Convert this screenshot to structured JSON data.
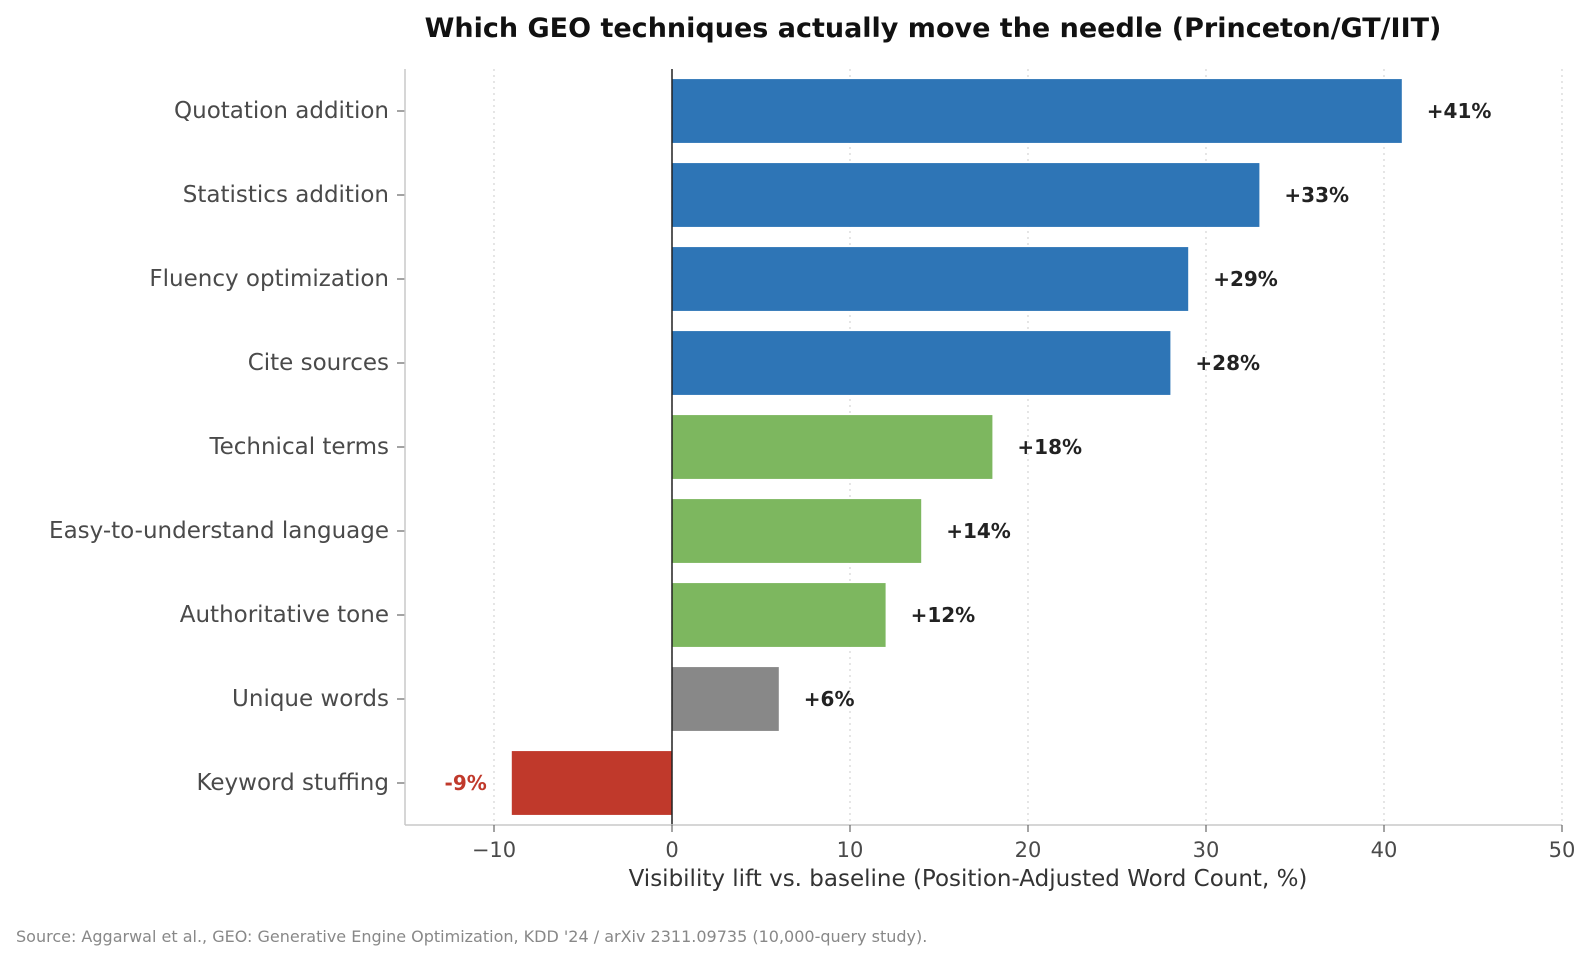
{
  "chart_data": {
    "type": "bar",
    "orientation": "horizontal",
    "title": "Which GEO techniques actually move the needle (Princeton/GT/IIT)",
    "xlabel": "Visibility lift vs. baseline (Position-Adjusted Word Count, %)",
    "ylabel": "",
    "xlim": [
      -15,
      50
    ],
    "xticks": [
      -10,
      0,
      10,
      20,
      30,
      40,
      50
    ],
    "xtick_labels": [
      "−10",
      "0",
      "10",
      "20",
      "30",
      "40",
      "50"
    ],
    "grid": "x, dotted",
    "categories": [
      "Quotation addition",
      "Statistics addition",
      "Fluency optimization",
      "Cite sources",
      "Technical terms",
      "Easy-to-understand language",
      "Authoritative tone",
      "Unique words",
      "Keyword stuffing"
    ],
    "values": [
      41,
      33,
      29,
      28,
      18,
      14,
      12,
      6,
      -9
    ],
    "value_labels": [
      "+41%",
      "+33%",
      "+29%",
      "+28%",
      "+18%",
      "+14%",
      "+12%",
      "+6%",
      "-9%"
    ],
    "bar_colors": [
      "#2e75b6",
      "#2e75b6",
      "#2e75b6",
      "#2e75b6",
      "#7db75f",
      "#7db75f",
      "#7db75f",
      "#888888",
      "#c0392b"
    ],
    "value_label_colors": [
      "#222222",
      "#222222",
      "#222222",
      "#222222",
      "#222222",
      "#222222",
      "#222222",
      "#222222",
      "#c0392b"
    ],
    "source": "Source: Aggarwal et al., GEO: Generative Engine Optimization, KDD '24 / arXiv 2311.09735 (10,000-query study)."
  }
}
